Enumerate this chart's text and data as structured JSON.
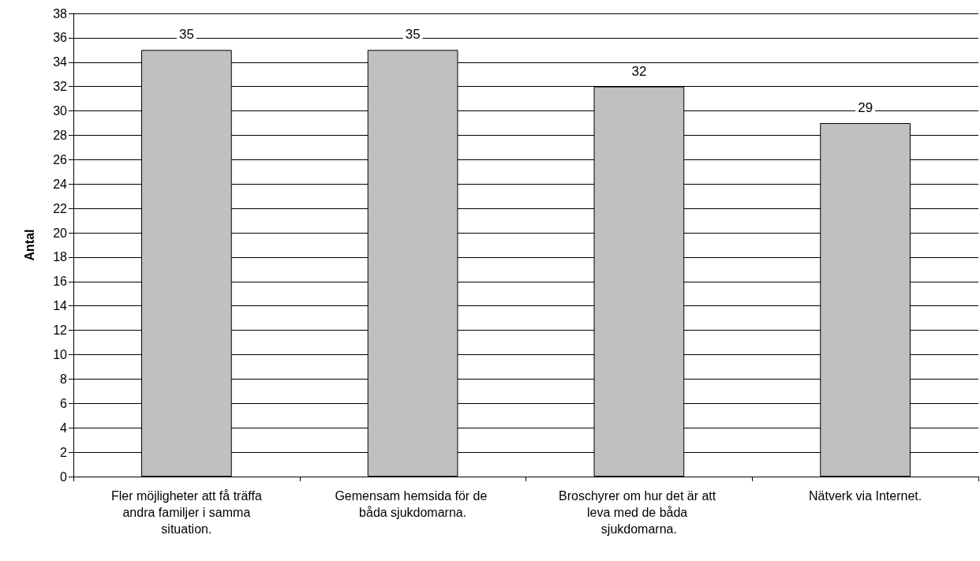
{
  "chart_data": {
    "type": "bar",
    "ylabel": "Antal",
    "categories": [
      "Fler möjligheter att få träffa andra familjer i samma situation.",
      "Gemensam hemsida för de båda sjukdomarna.",
      "Broschyrer om hur det är att leva med de båda sjukdomarna.",
      "Nätverk via Internet."
    ],
    "values": [
      35,
      35,
      32,
      29
    ],
    "color": "#c0c0c0",
    "ylim": [
      0,
      38
    ],
    "yticks": [
      0,
      2,
      4,
      6,
      8,
      10,
      12,
      14,
      16,
      18,
      20,
      22,
      24,
      26,
      28,
      30,
      32,
      34,
      36,
      38
    ],
    "grid": "y",
    "data_labels": true
  }
}
